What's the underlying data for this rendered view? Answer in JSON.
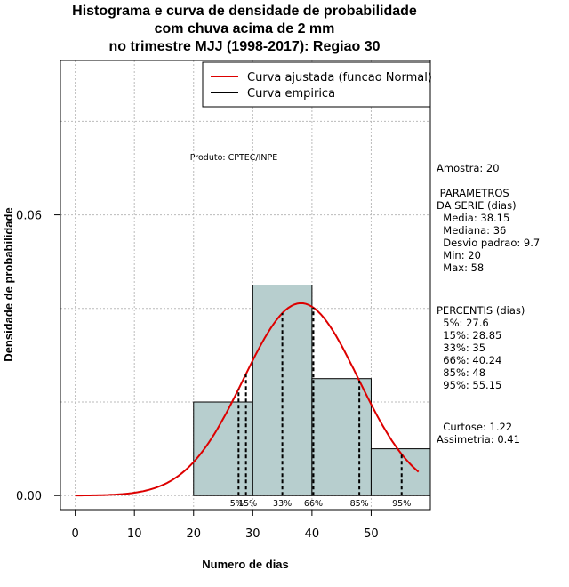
{
  "chart_data": {
    "type": "bar",
    "title_lines": [
      "Histograma e curva de densidade de probabilidade",
      "com chuva acima de 2 mm",
      "no trimestre MJJ (1998-2017): Regiao 30"
    ],
    "xlabel": "Numero de dias",
    "ylabel": "Densidade de probabilidade",
    "xlim": [
      -2.5,
      60
    ],
    "ylim": [
      -0.003,
      0.093
    ],
    "x_ticks": [
      0,
      10,
      20,
      30,
      40,
      50
    ],
    "y_ticks": [
      0.0,
      0.06
    ],
    "y_tick_labels": [
      "0.00",
      "0.06"
    ],
    "grid": true,
    "histogram": {
      "bins": [
        [
          20,
          30
        ],
        [
          30,
          40
        ],
        [
          40,
          50
        ],
        [
          50,
          60
        ]
      ],
      "densities": [
        0.02,
        0.045,
        0.025,
        0.01
      ],
      "fill": "#b7cece"
    },
    "series": [
      {
        "name": "Curva ajustada (funcao Normal)",
        "color": "#dd0000",
        "mean": 38.15,
        "sd": 9.7,
        "x_range": [
          0,
          58
        ]
      },
      {
        "name": "Curva empirica",
        "color": "#000000"
      }
    ],
    "percentile_lines": [
      {
        "label": "5%",
        "value": 27.6
      },
      {
        "label": "15%",
        "value": 28.85
      },
      {
        "label": "33%",
        "value": 35
      },
      {
        "label": "66%",
        "value": 40.24
      },
      {
        "label": "85%",
        "value": 48
      },
      {
        "label": "95%",
        "value": 55.15
      }
    ],
    "product_label": "Produto: CPTEC/INPE",
    "legend_position": "top-right"
  },
  "side_panel": {
    "sample": "Amostra: 20",
    "params_lines": [
      " PARAMETROS",
      "DA SERIE (dias)",
      "  Media: 38.15",
      "  Mediana: 36",
      "  Desvio padrao: 9.7",
      "  Min: 20",
      "  Max: 58"
    ],
    "percentis_lines": [
      "PERCENTIS (dias)",
      "  5%: 27.6",
      "  15%: 28.85",
      "  33%: 35",
      "  66%: 40.24",
      "  85%: 48",
      "  95%: 55.15"
    ],
    "curtose": "  Curtose: 1.22",
    "assimetria": "Assimetria: 0.41"
  }
}
